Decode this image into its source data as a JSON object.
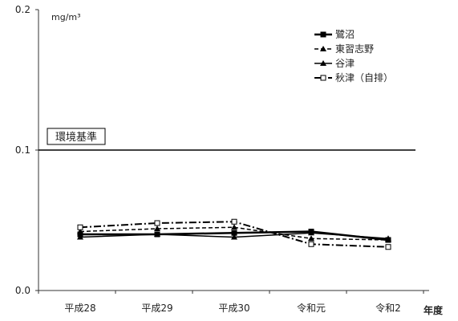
{
  "chart_data": {
    "type": "line",
    "title": "",
    "xlabel": "年度",
    "ylabel": "",
    "unit": "mg/m³",
    "categories": [
      "平成28",
      "平成29",
      "平成30",
      "令和元",
      "令和2"
    ],
    "ylim": [
      0,
      0.2
    ],
    "yticks": [
      "0.0",
      "0.1",
      "0.2"
    ],
    "grid": false,
    "legend_position": "top-right",
    "reference_line": {
      "label": "環境基準",
      "value": 0.1
    },
    "series": [
      {
        "name": "鷺沼",
        "values": [
          0.04,
          0.04,
          0.041,
          0.042,
          0.036
        ],
        "color": "#000000",
        "dash": "solid",
        "marker": "square-filled",
        "width": 2.5
      },
      {
        "name": "東習志野",
        "values": [
          0.042,
          0.044,
          0.045,
          0.037,
          0.036
        ],
        "color": "#000000",
        "dash": "dashed",
        "marker": "triangle-filled",
        "width": 1.5
      },
      {
        "name": "谷津",
        "values": [
          0.038,
          0.04,
          0.038,
          0.041,
          0.037
        ],
        "color": "#000000",
        "dash": "solid",
        "marker": "triangle-filled",
        "width": 1.5
      },
      {
        "name": "秋津（自排）",
        "values": [
          0.045,
          0.048,
          0.049,
          0.033,
          0.031
        ],
        "color": "#000000",
        "dash": "dashdot",
        "marker": "square-open",
        "width": 2
      }
    ]
  }
}
